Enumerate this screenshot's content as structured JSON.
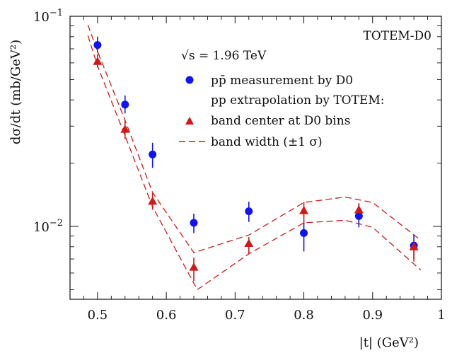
{
  "chart_data": {
    "type": "scatter",
    "annotation": "TOTEM-D0",
    "xlabel": "|t|   (GeV²)",
    "ylabel": "dσ/dt   (mb/GeV²)",
    "x_axis": {
      "scale": "linear",
      "range": [
        0.46,
        1.0
      ],
      "ticks": [
        0.5,
        0.6,
        0.7,
        0.8,
        0.9,
        1.0
      ],
      "tick_labels": [
        "0.5",
        "0.6",
        "0.7",
        "0.8",
        "0.9",
        "1"
      ]
    },
    "y_axis": {
      "scale": "log",
      "range": [
        0.0045,
        0.1
      ],
      "tick_labels": [
        {
          "value": 0.01,
          "base": "10",
          "exp": "−2"
        },
        {
          "value": 0.1,
          "base": "10",
          "exp": "−1"
        }
      ]
    },
    "grid": false,
    "legend": {
      "placement": "top-right",
      "header": "√s = 1.96 TeV",
      "entries": [
        {
          "label": "pp̄ measurement by D0",
          "marker": "circle"
        },
        {
          "label": "pp extrapolation by TOTEM:",
          "marker": "none"
        },
        {
          "label": "band center at D0 bins",
          "marker": "triangle"
        },
        {
          "label": "band width (±1 σ)",
          "marker": "dashed"
        }
      ]
    },
    "colors": {
      "d0": "#1414e6",
      "totem": "#cc1a1a"
    },
    "series": [
      {
        "name": "pp̄ measurement by D0",
        "kind": "points",
        "x": [
          0.5,
          0.54,
          0.58,
          0.64,
          0.72,
          0.8,
          0.88,
          0.96
        ],
        "y": [
          0.073,
          0.038,
          0.022,
          0.0104,
          0.0118,
          0.0093,
          0.0112,
          0.0081
        ],
        "y_low": [
          0.067,
          0.0345,
          0.019,
          0.0093,
          0.0105,
          0.0076,
          0.0099,
          0.007
        ],
        "y_high": [
          0.08,
          0.042,
          0.025,
          0.0115,
          0.0131,
          0.0105,
          0.0128,
          0.0091
        ]
      },
      {
        "name": "band center at D0 bins",
        "kind": "points",
        "x": [
          0.5,
          0.54,
          0.58,
          0.64,
          0.72,
          0.8,
          0.88,
          0.96
        ],
        "y": [
          0.061,
          0.029,
          0.0132,
          0.0064,
          0.0083,
          0.0119,
          0.012,
          0.008
        ],
        "y_low": [
          0.057,
          0.026,
          0.012,
          0.0055,
          0.0074,
          0.0103,
          0.0108,
          0.0068
        ],
        "y_high": [
          0.066,
          0.032,
          0.0144,
          0.0071,
          0.0089,
          0.0131,
          0.0129,
          0.0085
        ]
      },
      {
        "name": "band width (±1 σ)",
        "kind": "band",
        "upper": {
          "x": [
            0.486,
            0.5,
            0.54,
            0.58,
            0.64,
            0.72,
            0.8,
            0.86,
            0.9,
            0.97
          ],
          "y": [
            0.091,
            0.068,
            0.032,
            0.0145,
            0.0075,
            0.0091,
            0.013,
            0.0138,
            0.013,
            0.0086
          ]
        },
        "lower": {
          "x": [
            0.486,
            0.5,
            0.54,
            0.58,
            0.645,
            0.72,
            0.8,
            0.86,
            0.9,
            0.97
          ],
          "y": [
            0.081,
            0.058,
            0.027,
            0.0124,
            0.005,
            0.0074,
            0.0104,
            0.0107,
            0.0099,
            0.0062
          ]
        }
      }
    ]
  }
}
